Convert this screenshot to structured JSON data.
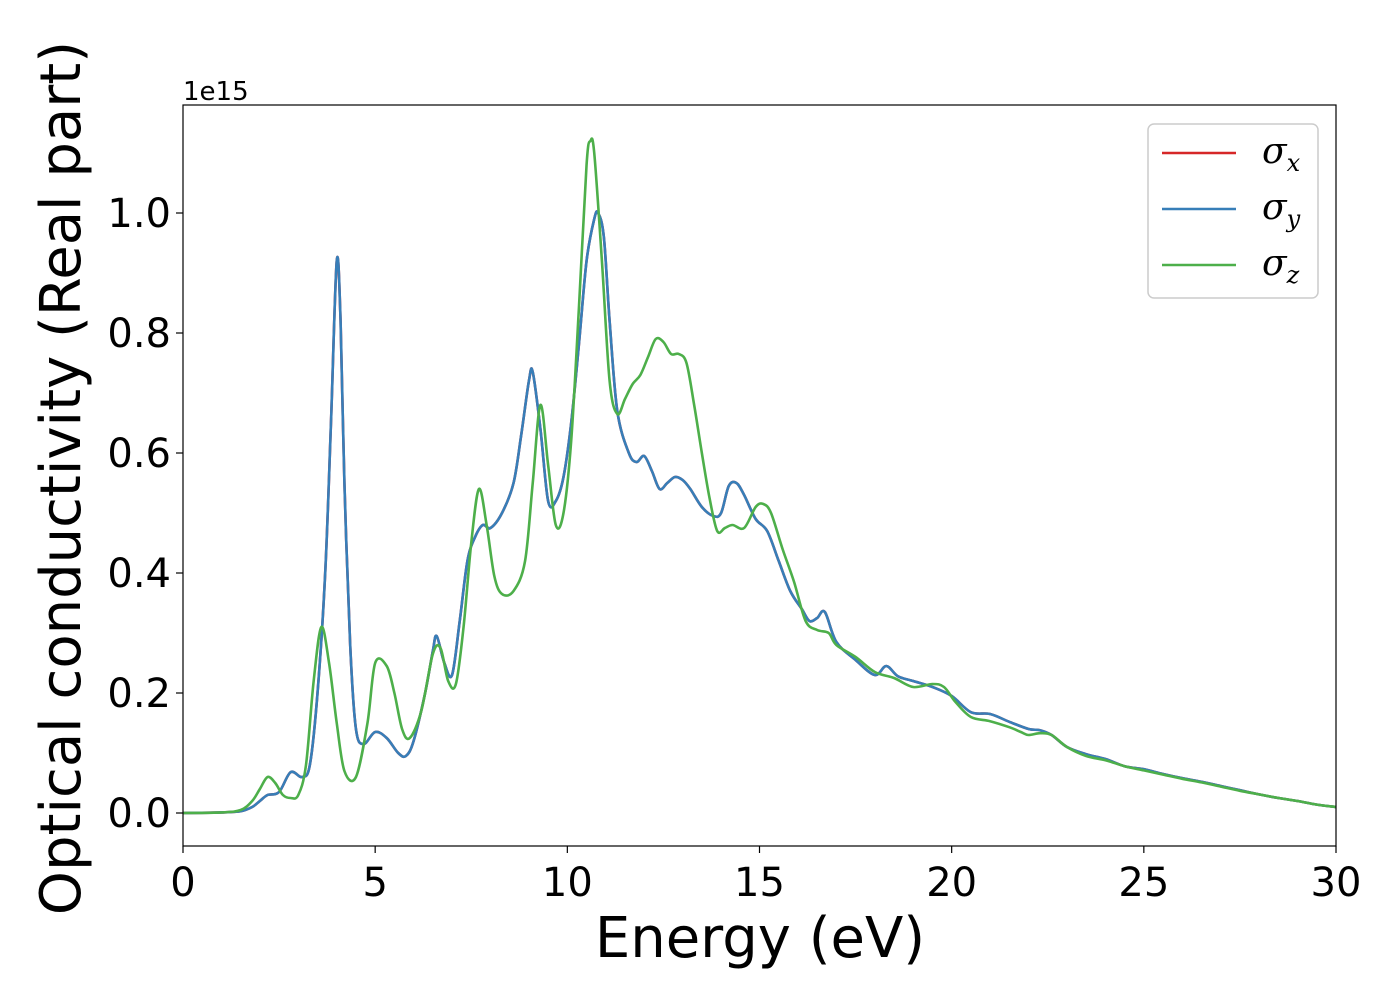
{
  "chart_data": {
    "type": "line",
    "xlabel": "Energy (eV)",
    "ylabel": "Optical conductivity (Real part)",
    "offset_text": "1e15",
    "xlim": [
      0,
      30
    ],
    "ylim": [
      -0.055,
      1.18
    ],
    "xticks": [
      0,
      5,
      10,
      15,
      20,
      25,
      30
    ],
    "xtick_labels": [
      "0",
      "5",
      "10",
      "15",
      "20",
      "25",
      "30"
    ],
    "yticks": [
      0.0,
      0.2,
      0.4,
      0.6,
      0.8,
      1.0
    ],
    "ytick_labels": [
      "0.0",
      "0.2",
      "0.4",
      "0.6",
      "0.8",
      "1.0"
    ],
    "grid": false,
    "legend_position": "top-right",
    "series": [
      {
        "name": "σ",
        "subscript": "x",
        "color": "#d62728",
        "x": [
          0,
          1,
          1.5,
          1.8,
          2.0,
          2.2,
          2.5,
          2.8,
          3.1,
          3.3,
          3.5,
          3.7,
          3.85,
          4.0,
          4.1,
          4.2,
          4.35,
          4.5,
          4.7,
          5.0,
          5.3,
          5.6,
          5.8,
          6.0,
          6.3,
          6.5,
          6.6,
          6.8,
          7.0,
          7.2,
          7.4,
          7.6,
          7.8,
          8.0,
          8.3,
          8.6,
          8.8,
          9.0,
          9.1,
          9.3,
          9.5,
          9.7,
          9.9,
          10.1,
          10.3,
          10.5,
          10.7,
          10.8,
          10.95,
          11.1,
          11.3,
          11.6,
          11.8,
          12.0,
          12.2,
          12.4,
          12.6,
          12.8,
          13.0,
          13.2,
          13.5,
          13.8,
          14.0,
          14.2,
          14.4,
          14.6,
          14.9,
          15.2,
          15.5,
          15.8,
          16.1,
          16.3,
          16.5,
          16.7,
          17.0,
          17.5,
          18.0,
          18.3,
          18.6,
          19.0,
          19.5,
          20.0,
          20.5,
          21.0,
          21.5,
          22.0,
          22.3,
          22.6,
          23.0,
          23.5,
          24.0,
          24.5,
          25.0,
          25.5,
          26.0,
          26.5,
          27.0,
          27.5,
          28.0,
          28.5,
          29.0,
          29.5,
          30.0
        ],
        "y": [
          0,
          0.001,
          0.003,
          0.01,
          0.02,
          0.03,
          0.035,
          0.068,
          0.06,
          0.08,
          0.2,
          0.4,
          0.65,
          0.92,
          0.82,
          0.55,
          0.28,
          0.14,
          0.115,
          0.135,
          0.125,
          0.1,
          0.095,
          0.12,
          0.2,
          0.27,
          0.295,
          0.25,
          0.23,
          0.32,
          0.42,
          0.46,
          0.48,
          0.475,
          0.5,
          0.55,
          0.63,
          0.72,
          0.735,
          0.64,
          0.52,
          0.52,
          0.56,
          0.65,
          0.78,
          0.92,
          0.99,
          1.0,
          0.96,
          0.82,
          0.67,
          0.6,
          0.585,
          0.595,
          0.57,
          0.54,
          0.55,
          0.56,
          0.555,
          0.54,
          0.51,
          0.495,
          0.5,
          0.545,
          0.55,
          0.53,
          0.49,
          0.47,
          0.42,
          0.37,
          0.34,
          0.32,
          0.325,
          0.335,
          0.285,
          0.255,
          0.23,
          0.245,
          0.228,
          0.22,
          0.21,
          0.195,
          0.168,
          0.165,
          0.152,
          0.14,
          0.138,
          0.13,
          0.11,
          0.098,
          0.09,
          0.078,
          0.073,
          0.065,
          0.058,
          0.052,
          0.045,
          0.038,
          0.031,
          0.025,
          0.02,
          0.014,
          0.01
        ]
      },
      {
        "name": "σ",
        "subscript": "y",
        "color": "#377eb8",
        "x": [
          0,
          1,
          1.5,
          1.8,
          2.0,
          2.2,
          2.5,
          2.8,
          3.1,
          3.3,
          3.5,
          3.7,
          3.85,
          4.0,
          4.1,
          4.2,
          4.35,
          4.5,
          4.7,
          5.0,
          5.3,
          5.6,
          5.8,
          6.0,
          6.3,
          6.5,
          6.6,
          6.8,
          7.0,
          7.2,
          7.4,
          7.6,
          7.8,
          8.0,
          8.3,
          8.6,
          8.8,
          9.0,
          9.1,
          9.3,
          9.5,
          9.7,
          9.9,
          10.1,
          10.3,
          10.5,
          10.7,
          10.8,
          10.95,
          11.1,
          11.3,
          11.6,
          11.8,
          12.0,
          12.2,
          12.4,
          12.6,
          12.8,
          13.0,
          13.2,
          13.5,
          13.8,
          14.0,
          14.2,
          14.4,
          14.6,
          14.9,
          15.2,
          15.5,
          15.8,
          16.1,
          16.3,
          16.5,
          16.7,
          17.0,
          17.5,
          18.0,
          18.3,
          18.6,
          19.0,
          19.5,
          20.0,
          20.5,
          21.0,
          21.5,
          22.0,
          22.3,
          22.6,
          23.0,
          23.5,
          24.0,
          24.5,
          25.0,
          25.5,
          26.0,
          26.5,
          27.0,
          27.5,
          28.0,
          28.5,
          29.0,
          29.5,
          30.0
        ],
        "y": [
          0,
          0.001,
          0.003,
          0.01,
          0.02,
          0.03,
          0.035,
          0.068,
          0.06,
          0.08,
          0.2,
          0.4,
          0.65,
          0.92,
          0.82,
          0.55,
          0.28,
          0.14,
          0.115,
          0.135,
          0.125,
          0.1,
          0.095,
          0.12,
          0.2,
          0.27,
          0.295,
          0.25,
          0.23,
          0.32,
          0.42,
          0.46,
          0.48,
          0.475,
          0.5,
          0.55,
          0.63,
          0.72,
          0.735,
          0.64,
          0.52,
          0.52,
          0.56,
          0.65,
          0.78,
          0.92,
          0.99,
          1.0,
          0.96,
          0.82,
          0.67,
          0.6,
          0.585,
          0.595,
          0.57,
          0.54,
          0.55,
          0.56,
          0.555,
          0.54,
          0.51,
          0.495,
          0.5,
          0.545,
          0.55,
          0.53,
          0.49,
          0.47,
          0.42,
          0.37,
          0.34,
          0.32,
          0.325,
          0.335,
          0.285,
          0.255,
          0.23,
          0.245,
          0.228,
          0.22,
          0.21,
          0.195,
          0.168,
          0.165,
          0.152,
          0.14,
          0.138,
          0.13,
          0.11,
          0.098,
          0.09,
          0.078,
          0.073,
          0.065,
          0.058,
          0.052,
          0.045,
          0.038,
          0.031,
          0.025,
          0.02,
          0.014,
          0.01
        ]
      },
      {
        "name": "σ",
        "subscript": "z",
        "color": "#4daf4a",
        "x": [
          0,
          1,
          1.5,
          1.8,
          2.0,
          2.2,
          2.4,
          2.6,
          2.8,
          3.0,
          3.2,
          3.4,
          3.6,
          3.8,
          4.0,
          4.2,
          4.5,
          4.8,
          5.0,
          5.3,
          5.5,
          5.7,
          5.9,
          6.2,
          6.5,
          6.7,
          6.9,
          7.1,
          7.3,
          7.5,
          7.7,
          7.9,
          8.1,
          8.3,
          8.6,
          8.9,
          9.1,
          9.3,
          9.5,
          9.7,
          9.9,
          10.1,
          10.3,
          10.5,
          10.6,
          10.7,
          10.9,
          11.1,
          11.3,
          11.5,
          11.7,
          11.9,
          12.1,
          12.3,
          12.5,
          12.7,
          12.9,
          13.1,
          13.3,
          13.5,
          13.7,
          13.9,
          14.1,
          14.3,
          14.6,
          14.9,
          15.1,
          15.3,
          15.6,
          15.9,
          16.2,
          16.5,
          16.8,
          17.0,
          17.5,
          18.0,
          18.5,
          19.0,
          19.5,
          19.8,
          20.1,
          20.5,
          21.0,
          21.5,
          21.8,
          22.0,
          22.3,
          22.6,
          23.0,
          23.5,
          24.0,
          24.5,
          25.0,
          25.5,
          26.0,
          26.5,
          27.0,
          27.5,
          28.0,
          28.5,
          29.0,
          29.5,
          30.0
        ],
        "y": [
          0,
          0.001,
          0.005,
          0.02,
          0.04,
          0.06,
          0.05,
          0.03,
          0.025,
          0.03,
          0.08,
          0.22,
          0.31,
          0.25,
          0.15,
          0.07,
          0.06,
          0.15,
          0.25,
          0.245,
          0.2,
          0.14,
          0.125,
          0.17,
          0.265,
          0.275,
          0.22,
          0.215,
          0.31,
          0.45,
          0.54,
          0.48,
          0.395,
          0.365,
          0.37,
          0.42,
          0.55,
          0.68,
          0.58,
          0.48,
          0.5,
          0.62,
          0.84,
          1.08,
          1.12,
          1.1,
          0.92,
          0.72,
          0.665,
          0.69,
          0.715,
          0.73,
          0.76,
          0.79,
          0.785,
          0.765,
          0.765,
          0.75,
          0.68,
          0.6,
          0.525,
          0.47,
          0.475,
          0.48,
          0.475,
          0.51,
          0.515,
          0.5,
          0.44,
          0.385,
          0.32,
          0.305,
          0.3,
          0.28,
          0.26,
          0.235,
          0.225,
          0.21,
          0.215,
          0.21,
          0.185,
          0.16,
          0.153,
          0.143,
          0.135,
          0.13,
          0.133,
          0.13,
          0.11,
          0.095,
          0.088,
          0.078,
          0.071,
          0.064,
          0.057,
          0.051,
          0.044,
          0.037,
          0.031,
          0.025,
          0.02,
          0.014,
          0.01
        ]
      }
    ]
  }
}
